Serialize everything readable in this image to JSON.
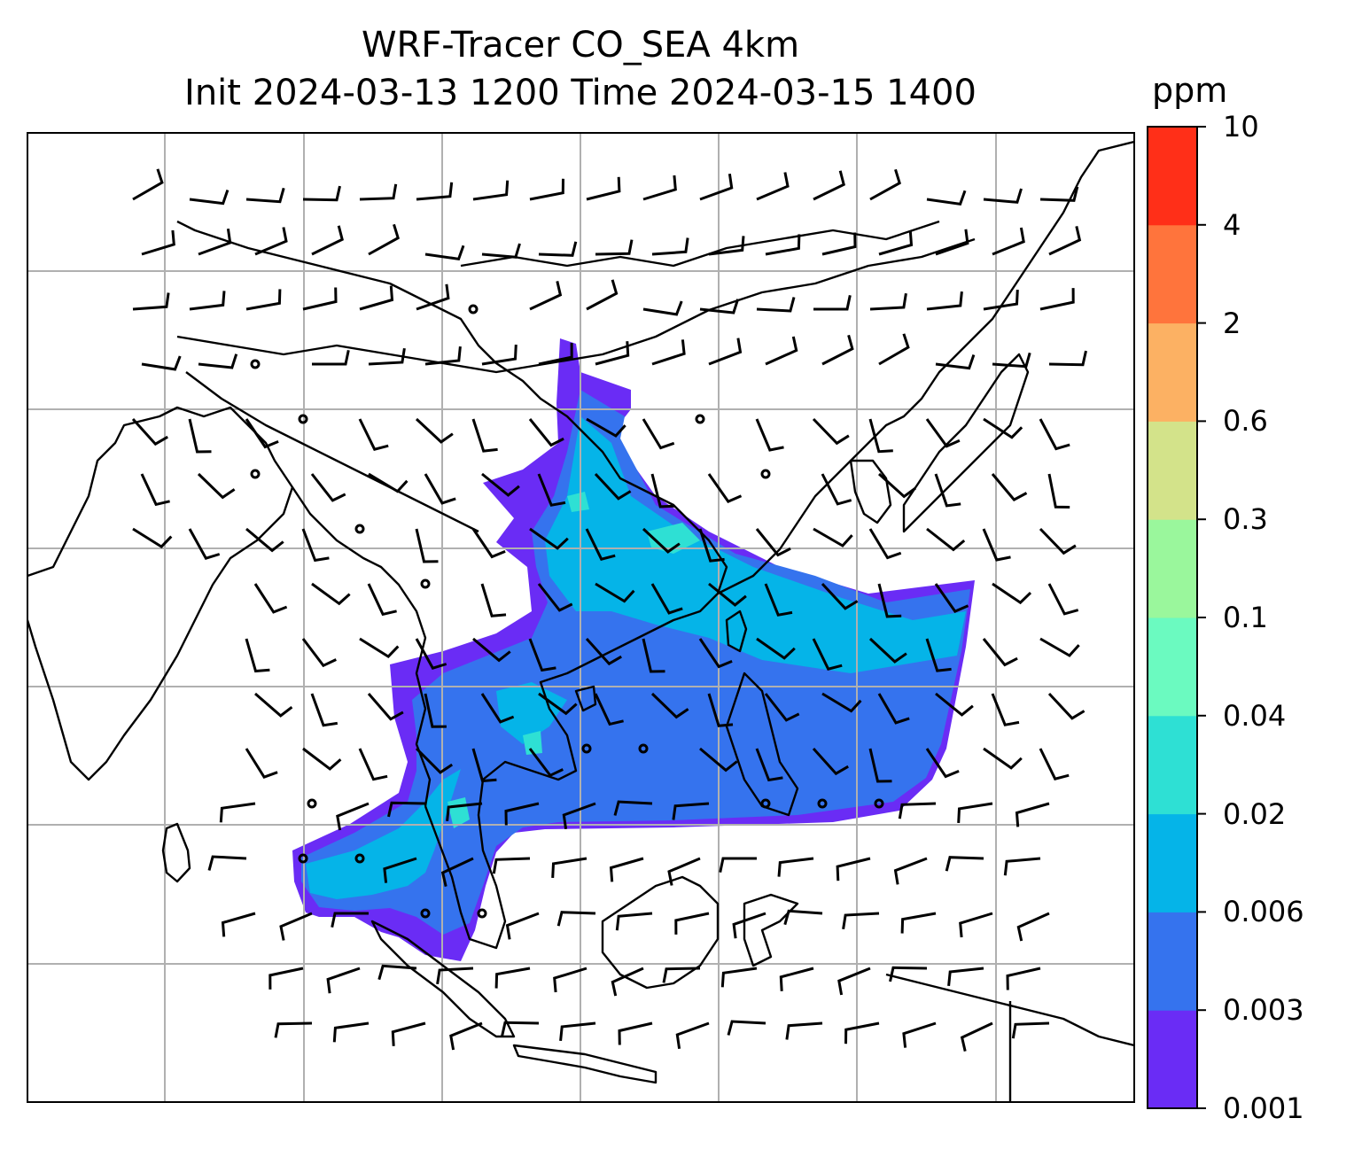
{
  "title": {
    "line1": "WRF-Tracer CO_SEA 4km",
    "line2": "Init 2024-03-13 1200 Time 2024-03-15 1400"
  },
  "colorbar": {
    "unit": "ppm",
    "levels": [
      "0.001",
      "0.003",
      "0.006",
      "0.02",
      "0.04",
      "0.1",
      "0.3",
      "0.6",
      "2",
      "4",
      "10"
    ],
    "colors": [
      "#6a2cf5",
      "#3573ee",
      "#05b4e8",
      "#2ee0d4",
      "#6bfac0",
      "#9af79c",
      "#d3e38a",
      "#fcb163",
      "#ff743c",
      "#ff2f18"
    ]
  },
  "map": {
    "region": "Southeast Asia",
    "field": "CO_SEA tracer concentration",
    "overlay": "wind barbs",
    "gridlines": true,
    "coastlines": true,
    "borders": true,
    "ocean_color": "#ffffff",
    "line_color": "#000000"
  }
}
